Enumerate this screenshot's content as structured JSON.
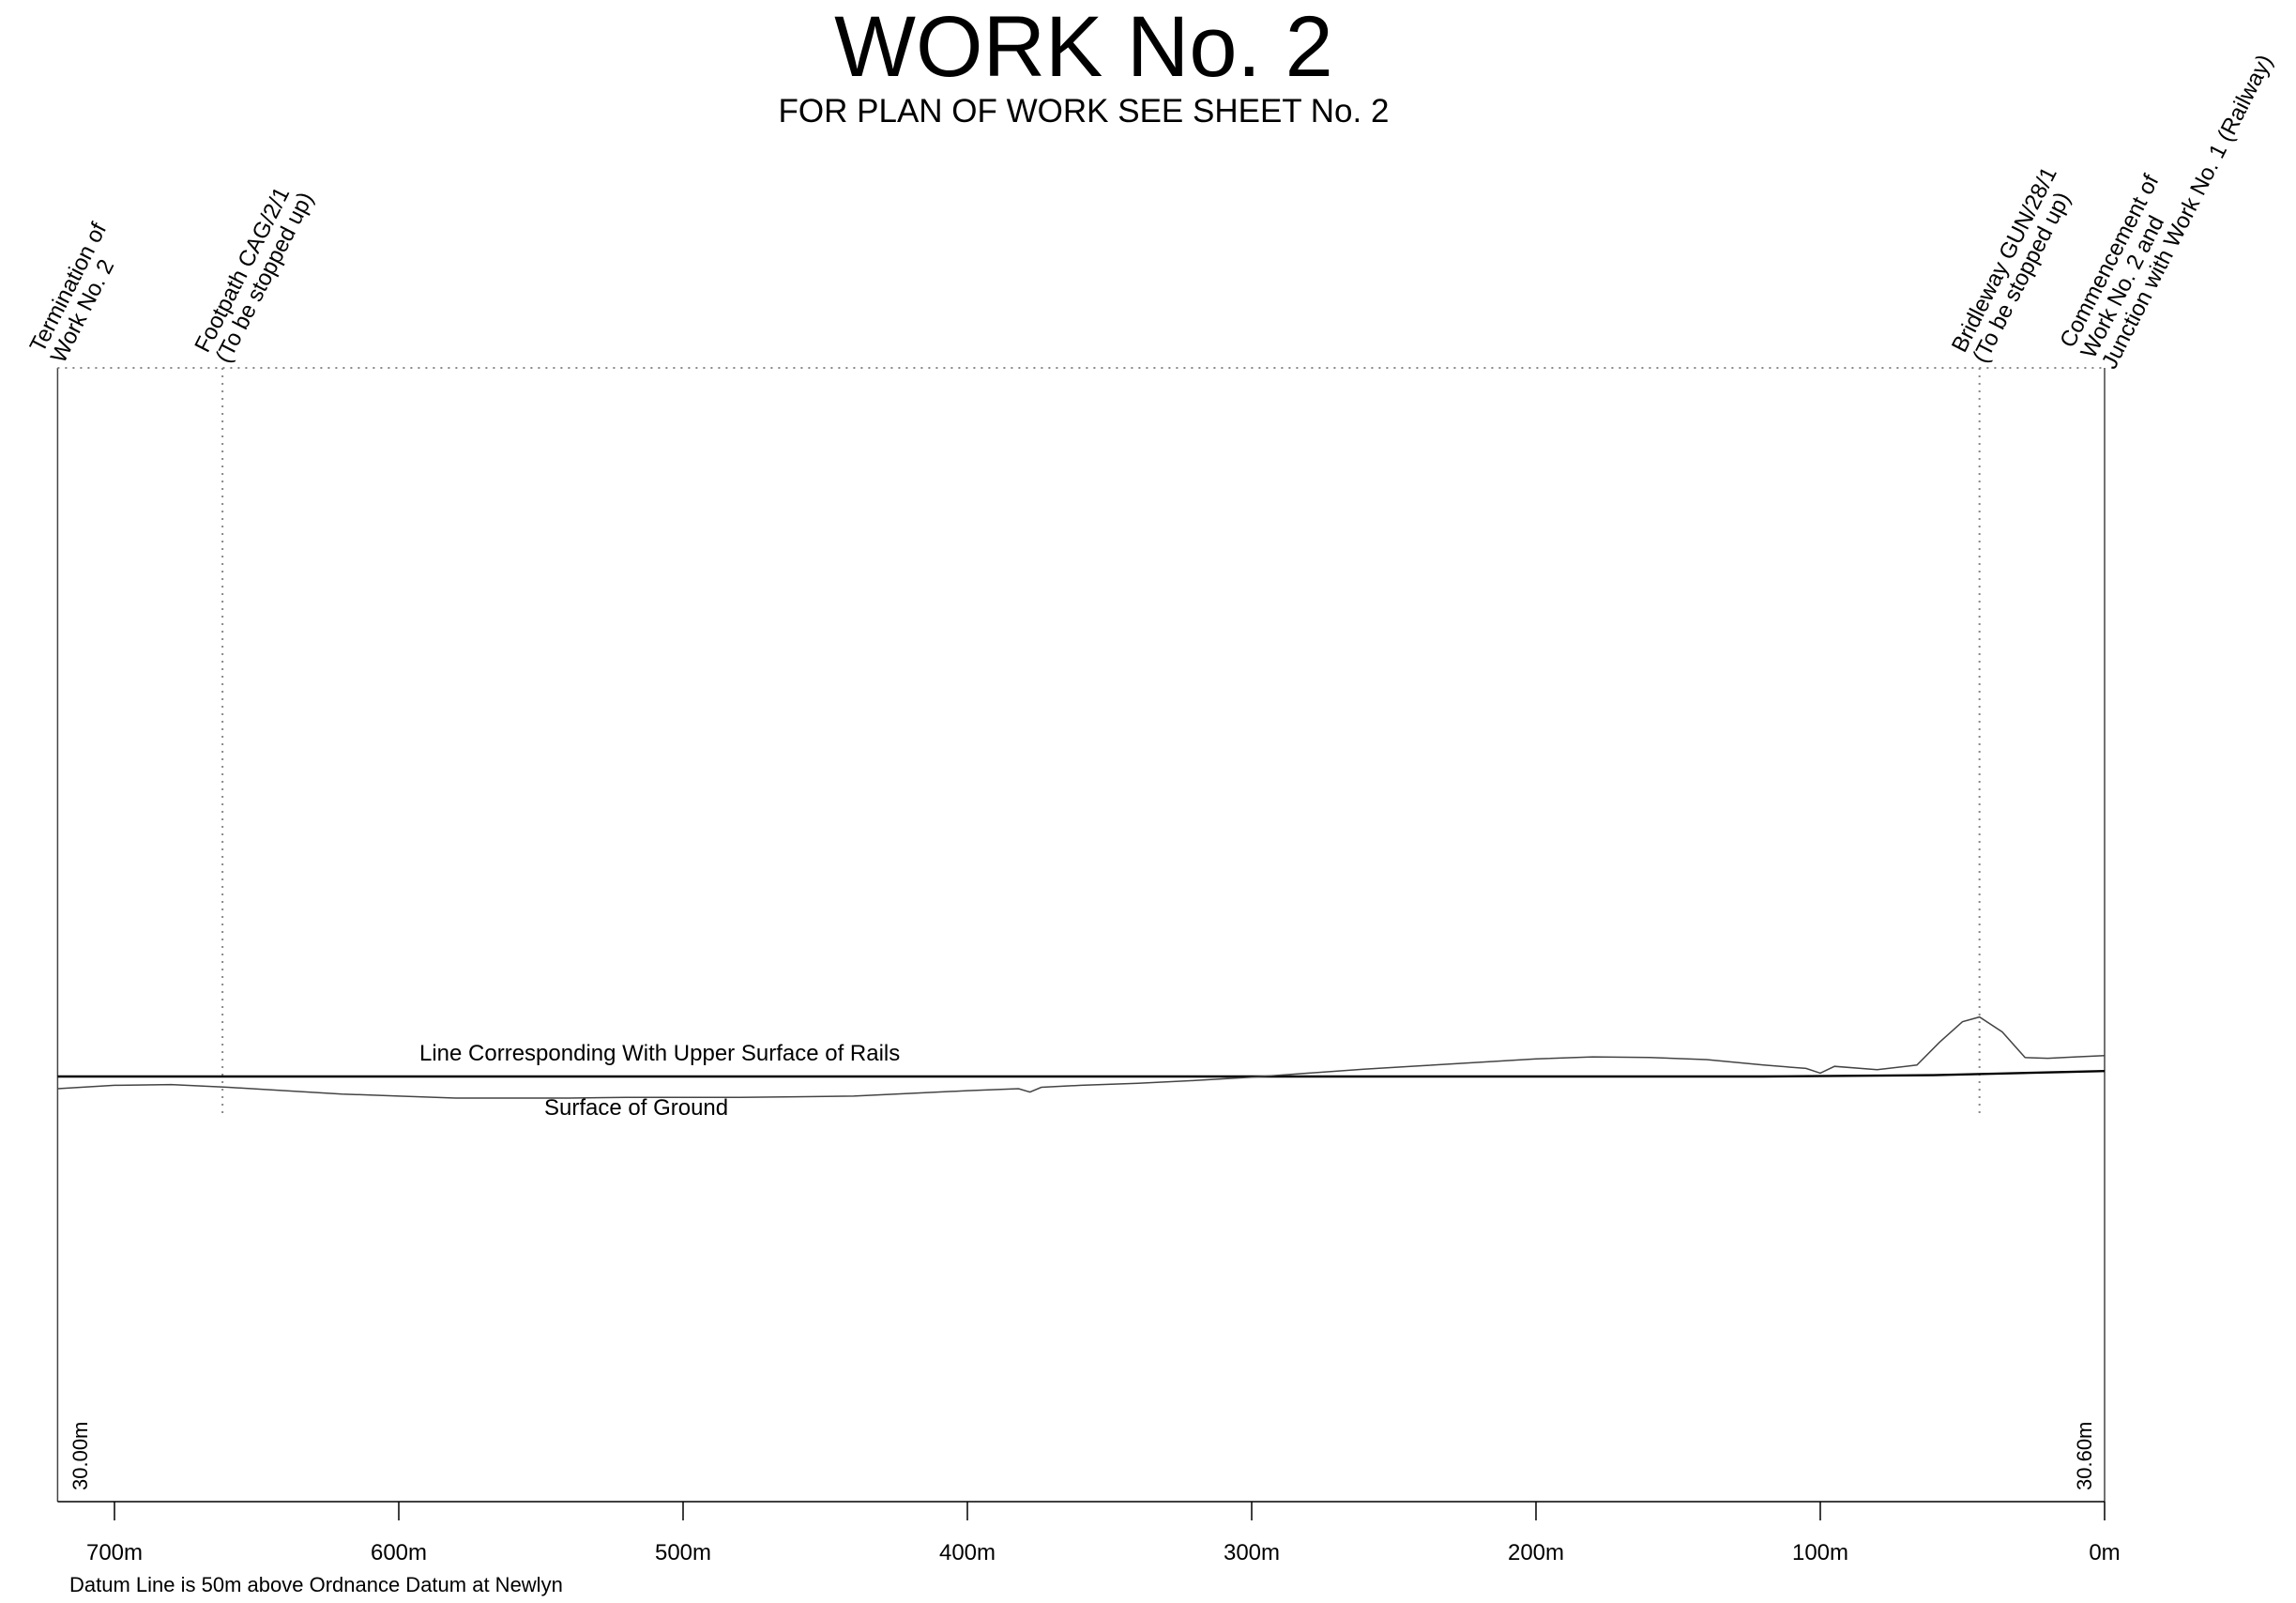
{
  "title": "WORK No. 2",
  "subtitle": "FOR PLAN OF WORK SEE SHEET No. 2",
  "colors": {
    "line": "#000000",
    "guide": "#888888",
    "ground": "#444444"
  },
  "profile": {
    "chainage_max": 720,
    "x_axis_direction": "right-to-left",
    "ticks": [
      {
        "value": 700,
        "label": "700m"
      },
      {
        "value": 600,
        "label": "600m"
      },
      {
        "value": 500,
        "label": "500m"
      },
      {
        "value": 400,
        "label": "400m"
      },
      {
        "value": 300,
        "label": "300m"
      },
      {
        "value": 200,
        "label": "200m"
      },
      {
        "value": 100,
        "label": "100m"
      },
      {
        "value": 0,
        "label": "0m"
      }
    ],
    "left_level": "30.00m",
    "right_level": "30.60m",
    "datum_note": "Datum Line is 50m above Ordnance Datum at Newlyn",
    "rails_label": "Line Corresponding With Upper Surface of Rails",
    "ground_label": "Surface of Ground",
    "markers": [
      {
        "chainage": 720,
        "lines": [
          "Termination of",
          "Work No. 2"
        ]
      },
      {
        "chainage": 662,
        "lines": [
          "Footpath CAG/2/1",
          "(To be stopped up)"
        ]
      },
      {
        "chainage": 44,
        "lines": [
          "Bridleway GUN/28/1",
          "(To be stopped up)"
        ]
      },
      {
        "chainage": 0,
        "lines": [
          "Commencement of",
          "Work No. 2 and",
          "Junction with Work No. 1 (Railway)"
        ]
      }
    ],
    "rails": [
      [
        720,
        38.2
      ],
      [
        120,
        38.2
      ],
      [
        60,
        38.4
      ],
      [
        0,
        39.0
      ]
    ],
    "ground": [
      [
        720,
        36.4
      ],
      [
        700,
        36.9
      ],
      [
        680,
        37.0
      ],
      [
        660,
        36.6
      ],
      [
        640,
        36.1
      ],
      [
        620,
        35.6
      ],
      [
        600,
        35.3
      ],
      [
        580,
        35.0
      ],
      [
        560,
        35.0
      ],
      [
        540,
        35.0
      ],
      [
        520,
        35.1
      ],
      [
        500,
        35.1
      ],
      [
        480,
        35.1
      ],
      [
        460,
        35.2
      ],
      [
        440,
        35.3
      ],
      [
        420,
        35.7
      ],
      [
        400,
        36.1
      ],
      [
        382,
        36.4
      ],
      [
        378,
        35.9
      ],
      [
        374,
        36.6
      ],
      [
        360,
        36.9
      ],
      [
        340,
        37.2
      ],
      [
        320,
        37.6
      ],
      [
        300,
        38.1
      ],
      [
        280,
        38.7
      ],
      [
        260,
        39.3
      ],
      [
        240,
        39.8
      ],
      [
        220,
        40.3
      ],
      [
        200,
        40.8
      ],
      [
        180,
        41.1
      ],
      [
        160,
        41.0
      ],
      [
        140,
        40.7
      ],
      [
        120,
        39.9
      ],
      [
        105,
        39.4
      ],
      [
        100,
        38.7
      ],
      [
        95,
        39.7
      ],
      [
        80,
        39.2
      ],
      [
        66,
        39.9
      ],
      [
        58,
        43.3
      ],
      [
        50,
        46.3
      ],
      [
        44,
        47.0
      ],
      [
        36,
        44.8
      ],
      [
        28,
        41.0
      ],
      [
        20,
        40.9
      ],
      [
        10,
        41.1
      ],
      [
        0,
        41.3
      ]
    ]
  }
}
